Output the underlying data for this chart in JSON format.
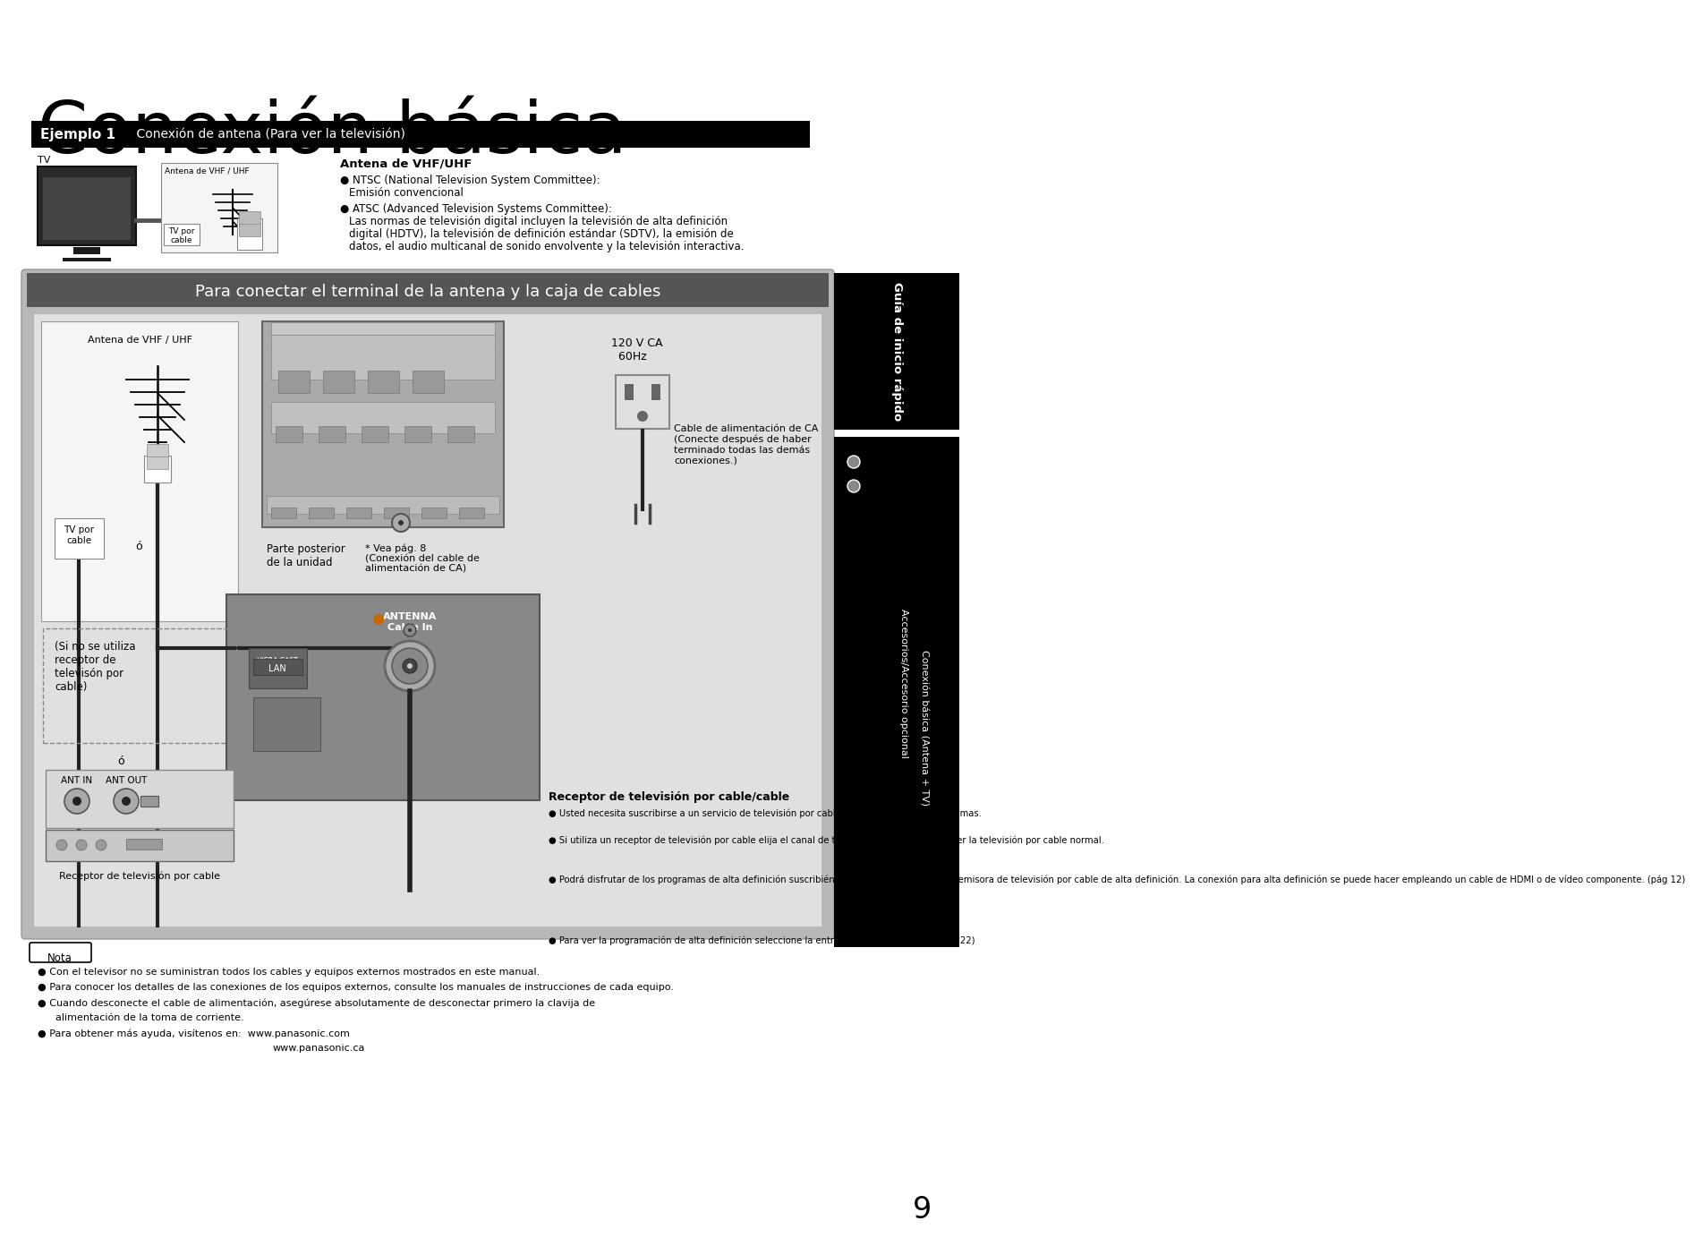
{
  "bg_color": "#ffffff",
  "page_number": "9",
  "title": "Conexión básica",
  "title_fontsize": 58,
  "title_color": "#000000",
  "header_bar_color": "#000000",
  "header_bar_text1": "Ejemplo 1",
  "header_bar_text2": "    Conexión de antena (Para ver la televisión)",
  "section2_bg": "#888888",
  "section2_title": "Para conectar el terminal de la antena y la caja de cables",
  "section2_title_color": "#ffffff",
  "sidebar_bg": "#000000",
  "sidebar_text1": "Guía de inicio rápido",
  "sidebar_text2_line1": "Conexión básica (Antena + TV)",
  "sidebar_text2_line2": "Accesorios/Accesorio opcional",
  "nota_title": "Nota",
  "nota_lines": [
    "Con el televisor no se suministran todos los cables y equipos externos mostrados en este manual.",
    "Para conocer los detalles de las conexiones de los equipos externos, consulte los manuales de instrucciones de cada equipo.",
    "Cuando desconecte el cable de alimentación, asegúrese absolutamente de desconectar primero la clavija de",
    "alimentación de la toma de corriente.",
    "Para obtener más ayuda, visítenos en:  www.panasonic.com",
    "www.panasonic.ca"
  ],
  "tv_label": "TV",
  "antenna_label_top": "Antena de VHF / UHF",
  "tv_cable_label": "TV por\ncable",
  "vhf_section_title": "Antena de VHF/UHF",
  "diagram_antenna_label": "Antena de VHF / UHF",
  "diagram_tv_cable": "TV por\ncable",
  "diagram_o1": "ó",
  "diagram_posterior": "Parte posterior\nde la unidad",
  "diagram_vea": "* Vea pág. 8\n(Conexión del cable de\nalimentación de CA)",
  "diagram_120v": "120 V CA\n  60Hz",
  "diagram_cable_alim": "Cable de alimentación de CA\n(Conecte después de haber\nterminado todas las demás\nconexiones.)",
  "diagram_antenna_cable": "ANTENNA\nCable In",
  "diagram_viera_cast": "VIERA CAST\nLAN",
  "diagram_si_no": "(Si no se utiliza\nreceptor de\ntelevisón por\ncable)",
  "diagram_o2": "ó",
  "diagram_ant_in": "ANT IN",
  "diagram_ant_out": "ANT OUT",
  "diagram_receptor_cable": "Receptor de televisión por cable/cable",
  "receptor_label_bottom": "Receptor de televisión por cable",
  "receptor_bullets": [
    "Usted necesita suscribirse a un servicio de televisión por cable para poder ver sus programas.",
    "Si utiliza un receptor de televisión por cable elija el canal de televisión CH3 ó CH4 para ver la televisión por cable normal.",
    "Podrá disfrutar de los programas de alta definición suscribiéndose a los servicios de una emisora de televisión por cable de alta definición. La conexión para alta definición se puede hacer empleando un cable de HDMI o de vídeo componente. (pág 12)",
    "Para ver la programación de alta definición seleccione la entrada de vídeo correcta. (pág 22)"
  ]
}
